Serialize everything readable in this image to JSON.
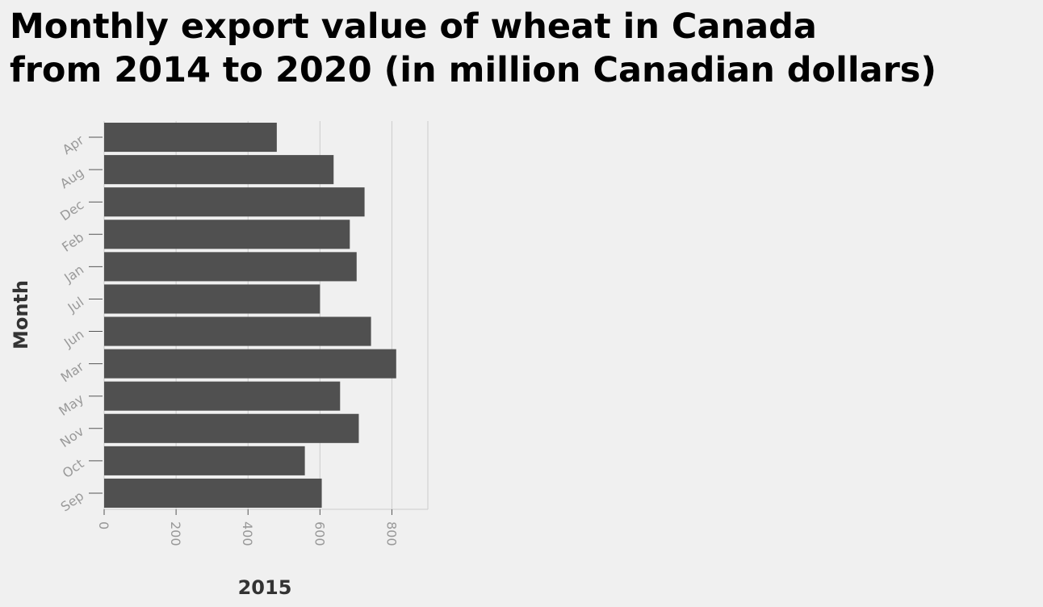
{
  "title_lines": [
    "Monthly export value of wheat in Canada",
    "from 2014 to 2020 (in million Canadian dollars)"
  ],
  "chart_data": {
    "type": "bar",
    "orientation": "horizontal",
    "title": "Monthly export value of wheat in Canada from 2014 to 2020 (in million Canadian dollars)",
    "xlabel": "2015",
    "ylabel": "Month",
    "categories": [
      "Apr",
      "Aug",
      "Dec",
      "Feb",
      "Jan",
      "Jul",
      "Jun",
      "Mar",
      "May",
      "Nov",
      "Oct",
      "Sep"
    ],
    "values": [
      480,
      638,
      724,
      683,
      702,
      600,
      742,
      812,
      656,
      708,
      558,
      605
    ],
    "xlim": [
      0,
      900
    ],
    "xticks": [
      0,
      200,
      400,
      600,
      800
    ],
    "grid": true,
    "legend": "none",
    "bar_color": "#505050",
    "grid_color": "#cccccc"
  }
}
